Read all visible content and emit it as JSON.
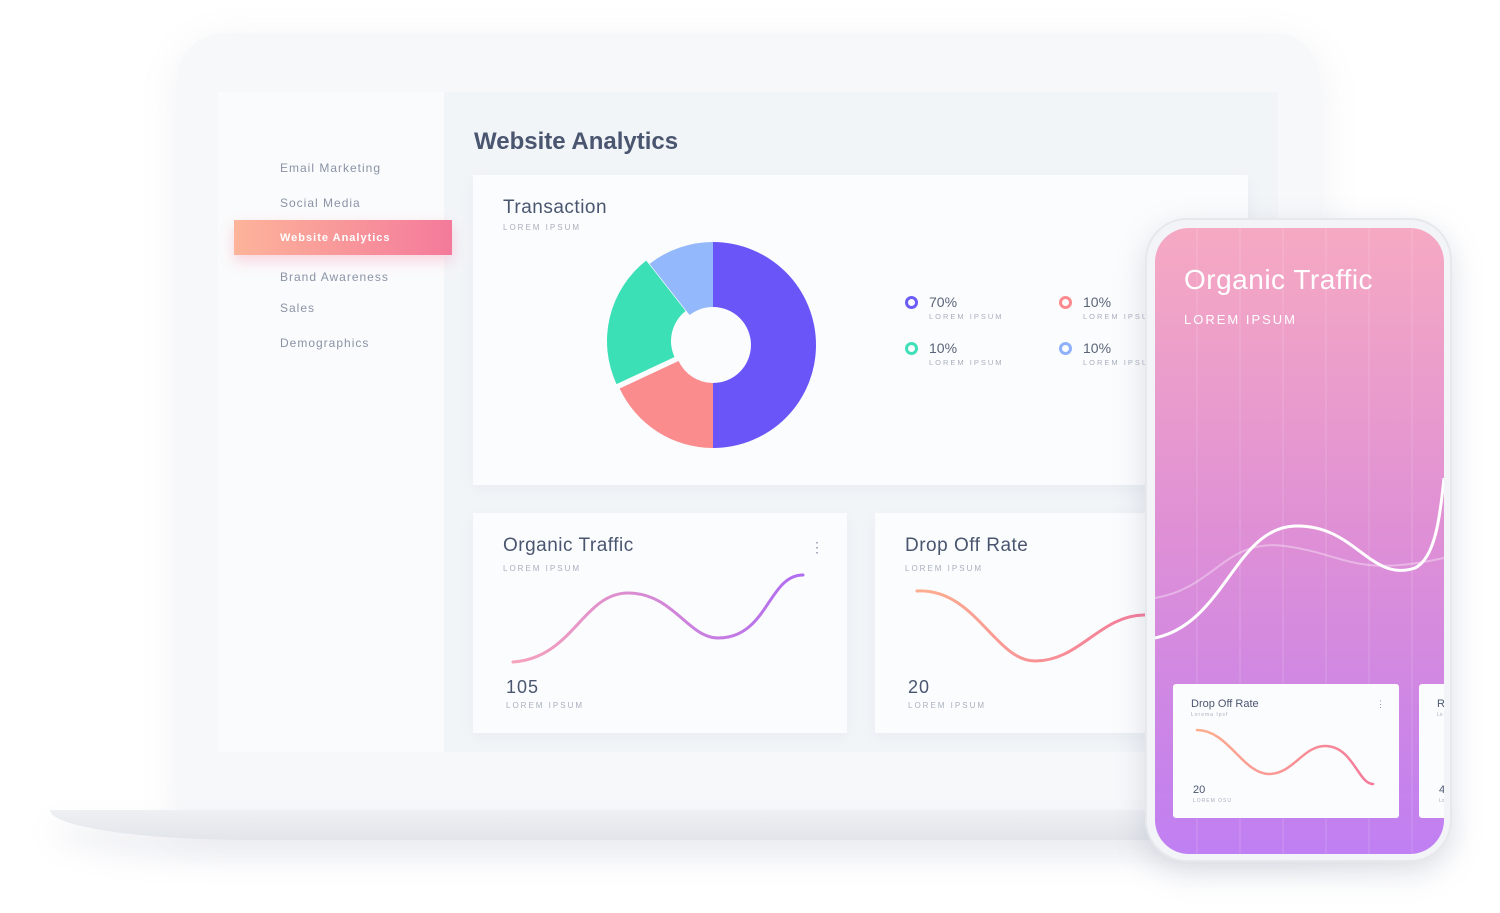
{
  "sidebar": {
    "items": [
      {
        "label": "Email Marketing"
      },
      {
        "label": "Social Media"
      },
      {
        "label": "Website Analytics",
        "active": true
      },
      {
        "label": "Brand Awareness"
      },
      {
        "label": "Sales"
      },
      {
        "label": "Demographics"
      }
    ]
  },
  "page": {
    "title": "Website Analytics"
  },
  "transaction": {
    "title": "Transaction",
    "subtitle": "LOREM IPSUM",
    "legend": [
      {
        "pct": "70%",
        "label": "LOREM IPSUM",
        "color": "#6c5cf7"
      },
      {
        "pct": "10%",
        "label": "LOREM IPSUM",
        "color": "#fb8a8f"
      },
      {
        "pct": "10%",
        "label": "LOREM IPSUM",
        "color": "#3fe0b8"
      },
      {
        "pct": "10%",
        "label": "LOREM IPSUM",
        "color": "#8fb1fb"
      }
    ]
  },
  "organic": {
    "title": "Organic Traffic",
    "subtitle": "LOREM IPSUM",
    "value": "105",
    "value_label": "LOREM IPSUM",
    "menu": "⋮"
  },
  "dropoff": {
    "title": "Drop Off Rate",
    "subtitle": "LOREM IPSUM",
    "value": "20",
    "value_label": "LOREM IPSUM"
  },
  "phone": {
    "title": "Organic Traffic",
    "subtitle": "LOREM IPSUM",
    "card1": {
      "title": "Drop Off Rate",
      "subtitle": "Lorema Ipsf",
      "value": "20",
      "value_label": "LOREM OSU",
      "menu": "⋮"
    },
    "card2": {
      "title": "R",
      "subtitle": "Lo",
      "value": "4",
      "value_label": "Lo"
    }
  },
  "colors": {
    "accent_gradient": [
      "#fdb49a",
      "#f47a9b"
    ],
    "phone_gradient": [
      "#f6a9c2",
      "#c07ff2"
    ]
  }
}
